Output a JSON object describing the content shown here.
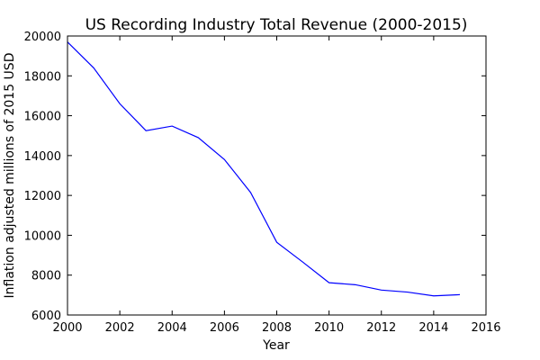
{
  "chart_data": {
    "type": "line",
    "title": "US Recording Industry Total Revenue (2000-2015)",
    "xlabel": "Year",
    "ylabel": "Inflation adjusted millions of 2015 USD",
    "xlim": [
      2000,
      2016
    ],
    "ylim": [
      6000,
      20000
    ],
    "x_ticks": [
      "2000",
      "2002",
      "2004",
      "2006",
      "2008",
      "2010",
      "2012",
      "2014",
      "2016"
    ],
    "y_ticks": [
      "6000",
      "8000",
      "10000",
      "12000",
      "14000",
      "16000",
      "18000",
      "20000"
    ],
    "grid": false,
    "series": [
      {
        "color": "#0000ff",
        "x": [
          2000,
          2001,
          2002,
          2003,
          2004,
          2005,
          2006,
          2007,
          2008,
          2009,
          2010,
          2011,
          2012,
          2013,
          2014,
          2015
        ],
        "y": [
          19700,
          18400,
          16600,
          15250,
          15480,
          14900,
          13800,
          12150,
          9650,
          8650,
          7620,
          7520,
          7250,
          7150,
          6960,
          7020
        ]
      }
    ]
  }
}
